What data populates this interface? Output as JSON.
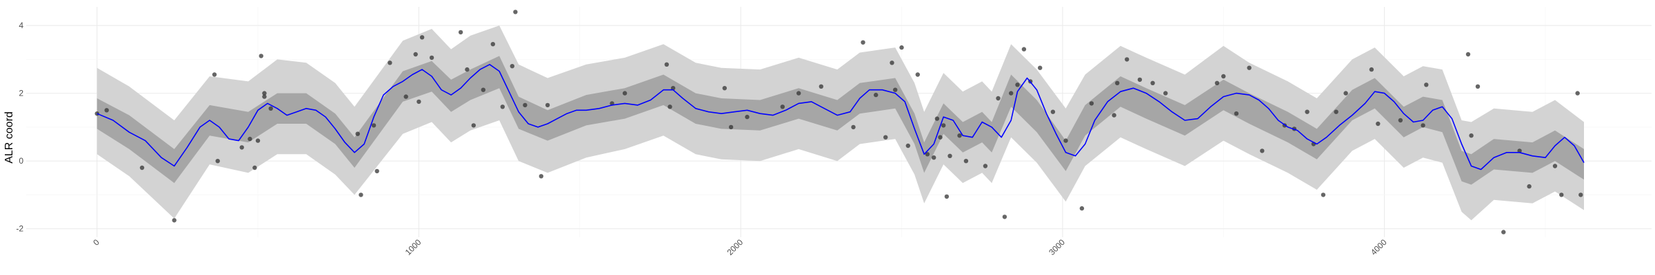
{
  "chart_data": {
    "type": "line",
    "title": "",
    "xlabel": "",
    "ylabel": "ALR coord",
    "xlim": [
      -220,
      4830
    ],
    "ylim": [
      -2.25,
      4.55
    ],
    "x_ticks": [
      0,
      1000,
      2000,
      3000,
      4000
    ],
    "x_tick_labels": [
      "0",
      "1000",
      "2000",
      "3000",
      "4000"
    ],
    "y_ticks": [
      -2,
      0,
      2,
      4
    ],
    "y_tick_labels": [
      "-2",
      "0",
      "2",
      "4"
    ],
    "grid": true,
    "legend": "none",
    "colors": {
      "mean_line": "#0000ff",
      "inner_band": "#a6a6a6",
      "outer_band": "#d3d3d3",
      "points": "#333333",
      "grid_major": "#ebebeb",
      "grid_minor": "#f5f5f5"
    },
    "mean_curve": {
      "x": [
        0,
        50,
        100,
        150,
        200,
        240,
        280,
        320,
        350,
        380,
        410,
        440,
        470,
        500,
        530,
        560,
        590,
        620,
        650,
        680,
        710,
        740,
        770,
        800,
        830,
        860,
        890,
        920,
        950,
        980,
        1010,
        1040,
        1070,
        1100,
        1130,
        1160,
        1190,
        1220,
        1250,
        1280,
        1310,
        1340,
        1370,
        1400,
        1430,
        1460,
        1490,
        1520,
        1560,
        1600,
        1640,
        1680,
        1720,
        1760,
        1790,
        1820,
        1860,
        1900,
        1940,
        1980,
        2020,
        2060,
        2100,
        2140,
        2180,
        2220,
        2260,
        2300,
        2340,
        2370,
        2400,
        2440,
        2480,
        2510,
        2540,
        2570,
        2600,
        2630,
        2660,
        2690,
        2720,
        2750,
        2780,
        2810,
        2840,
        2860,
        2890,
        2920,
        2950,
        2980,
        3010,
        3040,
        3070,
        3100,
        3140,
        3180,
        3220,
        3260,
        3300,
        3340,
        3380,
        3420,
        3460,
        3500,
        3540,
        3580,
        3610,
        3640,
        3670,
        3700,
        3730,
        3760,
        3790,
        3820,
        3860,
        3900,
        3940,
        3970,
        4000,
        4030,
        4060,
        4090,
        4120,
        4150,
        4180,
        4210,
        4240,
        4270,
        4300,
        4340,
        4380,
        4420,
        4460,
        4500,
        4530,
        4560,
        4590,
        4620
      ],
      "y": [
        1.4,
        1.2,
        0.85,
        0.6,
        0.1,
        -0.15,
        0.4,
        1.0,
        1.2,
        1.0,
        0.65,
        0.6,
        1.0,
        1.5,
        1.7,
        1.55,
        1.35,
        1.45,
        1.55,
        1.5,
        1.3,
        0.95,
        0.55,
        0.25,
        0.5,
        1.3,
        1.95,
        2.2,
        2.35,
        2.55,
        2.7,
        2.5,
        2.1,
        1.95,
        2.15,
        2.45,
        2.7,
        2.85,
        2.65,
        2.05,
        1.45,
        1.1,
        1.0,
        1.1,
        1.25,
        1.4,
        1.5,
        1.5,
        1.55,
        1.65,
        1.7,
        1.65,
        1.8,
        2.1,
        2.1,
        1.85,
        1.55,
        1.45,
        1.4,
        1.45,
        1.5,
        1.4,
        1.35,
        1.5,
        1.7,
        1.75,
        1.55,
        1.35,
        1.45,
        1.85,
        2.1,
        2.1,
        2.0,
        1.75,
        0.95,
        0.2,
        0.5,
        1.3,
        1.2,
        0.75,
        0.7,
        1.15,
        1.0,
        0.7,
        1.2,
        2.05,
        2.45,
        2.1,
        1.4,
        0.8,
        0.25,
        0.15,
        0.5,
        1.2,
        1.75,
        2.05,
        2.15,
        2.0,
        1.75,
        1.45,
        1.2,
        1.25,
        1.6,
        1.9,
        2.0,
        1.95,
        1.8,
        1.55,
        1.2,
        1.0,
        0.9,
        0.65,
        0.5,
        0.7,
        1.05,
        1.35,
        1.7,
        2.05,
        2.0,
        1.75,
        1.4,
        1.15,
        1.2,
        1.5,
        1.6,
        1.25,
        0.5,
        -0.15,
        -0.25,
        0.1,
        0.25,
        0.25,
        0.15,
        0.1,
        0.45,
        0.7,
        0.45,
        -0.05
      ]
    },
    "inner_band": {
      "x": [
        0,
        100,
        240,
        350,
        470,
        560,
        650,
        740,
        800,
        950,
        1040,
        1100,
        1160,
        1250,
        1310,
        1400,
        1520,
        1640,
        1760,
        1860,
        1940,
        2060,
        2180,
        2300,
        2370,
        2480,
        2540,
        2570,
        2630,
        2690,
        2750,
        2780,
        2840,
        2920,
        3010,
        3070,
        3180,
        3260,
        3380,
        3500,
        3580,
        3700,
        3790,
        3900,
        3970,
        4060,
        4120,
        4180,
        4240,
        4270,
        4340,
        4460,
        4530,
        4620
      ],
      "lower": [
        0.95,
        0.35,
        -0.65,
        0.75,
        0.55,
        1.1,
        1.1,
        0.5,
        -0.2,
        1.75,
        2.05,
        1.45,
        1.8,
        2.15,
        0.95,
        0.6,
        1.05,
        1.25,
        1.65,
        1.1,
        0.95,
        0.9,
        1.25,
        0.9,
        1.4,
        1.55,
        0.5,
        -0.35,
        0.8,
        0.25,
        0.55,
        0.25,
        1.6,
        0.85,
        -0.3,
        0.75,
        1.6,
        1.25,
        0.75,
        1.5,
        1.1,
        0.55,
        0.05,
        1.2,
        1.55,
        0.7,
        1.0,
        0.85,
        -0.6,
        -0.7,
        -0.25,
        -0.35,
        0.0,
        -0.55
      ],
      "upper": [
        1.85,
        1.35,
        0.35,
        1.65,
        1.45,
        2.0,
        2.0,
        1.4,
        0.7,
        2.65,
        2.95,
        2.4,
        2.7,
        3.1,
        1.9,
        1.5,
        1.95,
        2.15,
        2.55,
        2.0,
        1.85,
        1.8,
        2.15,
        1.8,
        2.3,
        2.45,
        1.4,
        0.55,
        1.7,
        1.15,
        1.45,
        1.15,
        2.55,
        1.8,
        0.6,
        1.65,
        2.5,
        2.15,
        1.65,
        2.4,
        2.0,
        1.45,
        0.95,
        2.1,
        2.45,
        1.6,
        1.9,
        1.8,
        0.3,
        0.2,
        0.65,
        0.55,
        0.9,
        0.35
      ]
    },
    "outer_band": {
      "x": [
        0,
        100,
        240,
        350,
        470,
        560,
        650,
        740,
        800,
        950,
        1040,
        1100,
        1160,
        1250,
        1310,
        1400,
        1520,
        1640,
        1760,
        1860,
        1940,
        2060,
        2180,
        2300,
        2370,
        2480,
        2540,
        2570,
        2630,
        2690,
        2750,
        2780,
        2840,
        2920,
        3010,
        3070,
        3180,
        3260,
        3380,
        3500,
        3580,
        3700,
        3790,
        3900,
        3970,
        4060,
        4120,
        4180,
        4240,
        4270,
        4340,
        4460,
        4530,
        4620
      ],
      "lower": [
        0.2,
        -0.45,
        -1.7,
        -0.1,
        -0.35,
        0.2,
        0.2,
        -0.4,
        -1.0,
        0.8,
        1.15,
        0.55,
        0.9,
        1.2,
        0.0,
        -0.35,
        0.1,
        0.35,
        0.75,
        0.2,
        0.05,
        0.0,
        0.35,
        0.0,
        0.5,
        0.65,
        -0.4,
        -1.25,
        -0.1,
        -0.65,
        -0.35,
        -0.65,
        0.7,
        -0.05,
        -1.2,
        -0.15,
        0.7,
        0.35,
        -0.15,
        0.6,
        0.2,
        -0.35,
        -0.85,
        0.3,
        0.65,
        -0.2,
        0.1,
        -0.05,
        -1.5,
        -1.75,
        -1.15,
        -1.25,
        -0.9,
        -1.45
      ],
      "upper": [
        2.75,
        2.2,
        1.2,
        2.5,
        2.35,
        3.0,
        2.9,
        2.3,
        1.6,
        3.55,
        3.9,
        3.3,
        3.7,
        4.0,
        2.85,
        2.45,
        2.85,
        3.05,
        3.45,
        2.9,
        2.75,
        2.7,
        3.05,
        2.7,
        3.2,
        3.35,
        2.3,
        1.45,
        2.6,
        2.05,
        2.35,
        2.05,
        3.45,
        2.7,
        1.55,
        2.55,
        3.4,
        3.05,
        2.55,
        3.4,
        2.9,
        2.35,
        1.85,
        3.0,
        3.35,
        2.5,
        2.8,
        2.7,
        1.2,
        1.15,
        1.55,
        1.45,
        1.8,
        1.15
      ]
    },
    "points": {
      "x": [
        0,
        30,
        140,
        240,
        365,
        375,
        450,
        475,
        490,
        500,
        510,
        520,
        520,
        540,
        810,
        820,
        860,
        870,
        910,
        960,
        990,
        1000,
        1010,
        1040,
        1130,
        1150,
        1170,
        1200,
        1230,
        1260,
        1290,
        1300,
        1330,
        1380,
        1400,
        1600,
        1640,
        1770,
        1780,
        1790,
        1950,
        1970,
        2020,
        2130,
        2180,
        2250,
        2350,
        2380,
        2420,
        2450,
        2470,
        2480,
        2500,
        2520,
        2550,
        2580,
        2600,
        2610,
        2620,
        2630,
        2640,
        2650,
        2680,
        2700,
        2760,
        2800,
        2820,
        2840,
        2860,
        2880,
        2900,
        2930,
        2970,
        3010,
        3060,
        3090,
        3160,
        3170,
        3200,
        3240,
        3280,
        3320,
        3480,
        3500,
        3540,
        3580,
        3620,
        3690,
        3720,
        3760,
        3780,
        3810,
        3850,
        3880,
        3960,
        3980,
        4050,
        4120,
        4130,
        4260,
        4270,
        4290,
        4370,
        4420,
        4450,
        4530,
        4550,
        4600,
        4610
      ],
      "y": [
        1.4,
        1.5,
        -0.2,
        -1.75,
        2.55,
        0.0,
        0.4,
        0.65,
        -0.2,
        0.6,
        3.1,
        2.0,
        1.9,
        1.55,
        0.8,
        -1.0,
        1.05,
        -0.3,
        2.9,
        1.9,
        3.15,
        1.75,
        3.65,
        3.05,
        3.8,
        2.7,
        1.05,
        2.1,
        3.45,
        1.6,
        2.8,
        4.4,
        1.65,
        -0.45,
        1.65,
        1.7,
        2.0,
        2.85,
        1.6,
        2.15,
        2.15,
        1.0,
        1.3,
        1.6,
        2.0,
        2.2,
        1.0,
        3.5,
        1.95,
        0.7,
        2.9,
        2.1,
        3.35,
        0.45,
        2.55,
        0.2,
        0.1,
        1.25,
        0.7,
        1.05,
        -1.05,
        0.15,
        0.75,
        0.0,
        -0.15,
        1.85,
        -1.65,
        2.0,
        2.25,
        3.3,
        2.35,
        2.75,
        1.45,
        0.6,
        -1.4,
        1.7,
        1.35,
        2.3,
        3.0,
        2.4,
        2.3,
        2.0,
        2.3,
        2.5,
        1.4,
        2.75,
        0.3,
        1.05,
        0.95,
        1.45,
        0.5,
        -1.0,
        1.45,
        2.0,
        2.7,
        1.1,
        1.2,
        1.05,
        2.25,
        3.15,
        0.75,
        2.2,
        -2.1,
        0.3,
        -0.75,
        -0.15,
        -1.0,
        2.0,
        -1.0
      ]
    }
  }
}
